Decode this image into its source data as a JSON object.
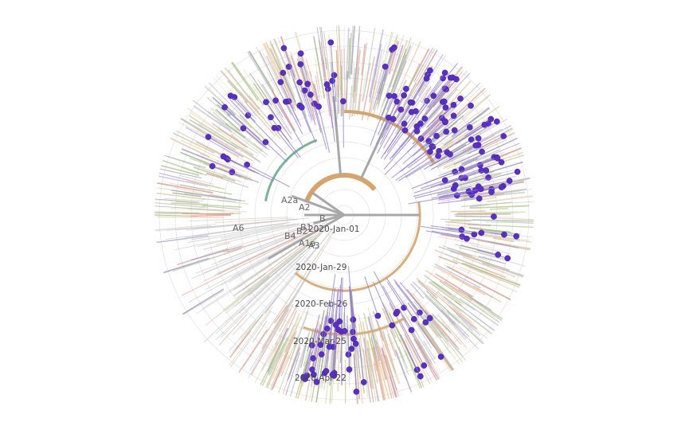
{
  "tree": {
    "date_labels": [
      "2020-Jan-01",
      "2020-Jan-29",
      "2020-Feb-26",
      "2020-Mar-25",
      "2020-Apr-22"
    ],
    "clade_labels": [
      "A2a",
      "A2",
      "B",
      "A6",
      "B1",
      "B2",
      "B4",
      "A1a",
      "A3"
    ],
    "colors": {
      "highlight": "#5a2fc7",
      "backbone_gray": "#a8a8a8",
      "backbone_orange": "#d8a46a",
      "backbone_green": "#7ab39a",
      "branch_palette": [
        "#d9c9a0",
        "#b7c98e",
        "#e3a08f",
        "#a59ac9",
        "#c6c6c6",
        "#e9c9a2",
        "#9db88c"
      ]
    },
    "tip_marker": "circle"
  }
}
